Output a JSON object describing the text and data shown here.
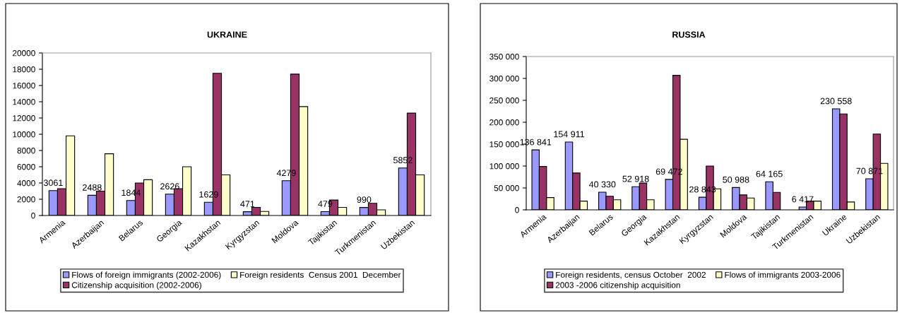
{
  "chart_data": [
    {
      "type": "bar",
      "title": "UKRAINE",
      "categories": [
        "Armenia",
        "Azerbaijan",
        "Belarus",
        "Georgia",
        "Kazakhstan",
        "Kyrgyzstan",
        "Moldova",
        "Tajikistan",
        "Turkmenistan",
        "Uzbekistan"
      ],
      "series": [
        {
          "name": "Flows of foreign immigrants (2002-2006)",
          "color": "#9999ff",
          "values": [
            3061,
            2488,
            1844,
            2626,
            1629,
            471,
            4279,
            479,
            990,
            5852
          ],
          "value_labels": [
            "3061",
            "2488",
            "1844",
            "2626",
            "1629",
            "471",
            "4279",
            "479",
            "990",
            "5852"
          ]
        },
        {
          "name": "Citizenship acquisition (2002-2006)",
          "color": "#993366",
          "values": [
            3300,
            3000,
            4000,
            3300,
            17500,
            1000,
            17400,
            1900,
            1500,
            12600
          ]
        },
        {
          "name": "Foreign residents  Census 2001  December",
          "color": "#ffffcc",
          "values": [
            9800,
            7600,
            4400,
            6000,
            5000,
            500,
            13400,
            1000,
            700,
            5000
          ]
        }
      ],
      "ylim": [
        0,
        20000
      ],
      "yticks": [
        0,
        2000,
        4000,
        6000,
        8000,
        10000,
        12000,
        14000,
        16000,
        18000,
        20000
      ],
      "grid": false,
      "legend": "bottom"
    },
    {
      "type": "bar",
      "title": "RUSSIA",
      "categories": [
        "Armenia",
        "Azerbaijan",
        "Belarus",
        "Georgia",
        "Kazakhstan",
        "Kyrgyzstan",
        "Moldova",
        "Tajikistan",
        "Turkmenistan",
        "Ukraine",
        "Uzbekistan"
      ],
      "series": [
        {
          "name": "Foreign residents, census October  2002",
          "color": "#9999ff",
          "values": [
            136841,
            154911,
            40330,
            52918,
            69472,
            28843,
            50988,
            64165,
            6417,
            230558,
            70871
          ],
          "value_labels": [
            "136 841",
            "154 911",
            "40 330",
            "52 918",
            "69 472",
            "28 843",
            "50 988",
            "64 165",
            "6 417",
            "230 558",
            "70 871"
          ]
        },
        {
          "name": "2003 -2006 citizenship acquisition",
          "color": "#993366",
          "values": [
            99000,
            84000,
            31000,
            61000,
            307000,
            100000,
            34000,
            40000,
            20000,
            219000,
            173000
          ]
        },
        {
          "name": "Flows of immigrants 2003-2006",
          "color": "#ffffcc",
          "values": [
            28000,
            20000,
            23000,
            23000,
            161000,
            48000,
            27000,
            null,
            20000,
            18000,
            106000
          ]
        }
      ],
      "ylim": [
        0,
        350000
      ],
      "yticks": [
        {
          "value": 0,
          "label": "0"
        },
        {
          "value": 50000,
          "label": "50 000"
        },
        {
          "value": 100000,
          "label": "100 000"
        },
        {
          "value": 150000,
          "label": "150 000"
        },
        {
          "value": 200000,
          "label": "200 000"
        },
        {
          "value": 250000,
          "label": "250 000"
        },
        {
          "value": 300000,
          "label": "300 000"
        },
        {
          "value": 350000,
          "label": "350 000"
        }
      ],
      "grid": false,
      "legend": "bottom"
    }
  ]
}
